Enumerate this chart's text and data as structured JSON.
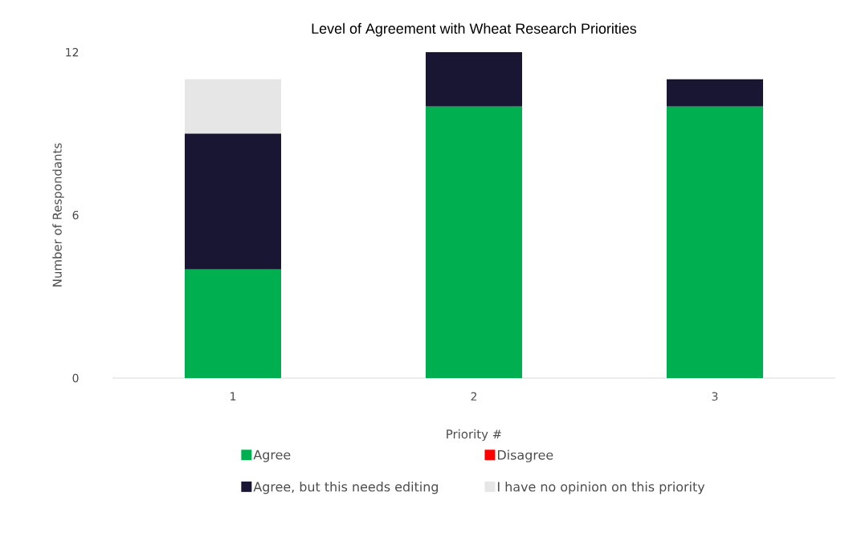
{
  "chart_data": {
    "type": "bar",
    "title": "Level of Agreement with Wheat Research Priorities",
    "xlabel": "Priority #",
    "ylabel": "Number of Respondants",
    "categories": [
      "1",
      "2",
      "3"
    ],
    "stacked": true,
    "ylim": [
      0,
      12
    ],
    "yticks": [
      0,
      6,
      12
    ],
    "grid": false,
    "legend": "bottom",
    "series": [
      {
        "name": "Agree",
        "color": "#00b050",
        "values": [
          4,
          10,
          10
        ]
      },
      {
        "name": "Disagree",
        "color": "#ff0000",
        "values": [
          0,
          0,
          0
        ]
      },
      {
        "name": "Agree, but this needs editing",
        "color": "#181633",
        "values": [
          5,
          2,
          1
        ]
      },
      {
        "name": "I have no opinion on this priority",
        "color": "#e7e6e6",
        "values": [
          2,
          0,
          0
        ]
      }
    ]
  }
}
